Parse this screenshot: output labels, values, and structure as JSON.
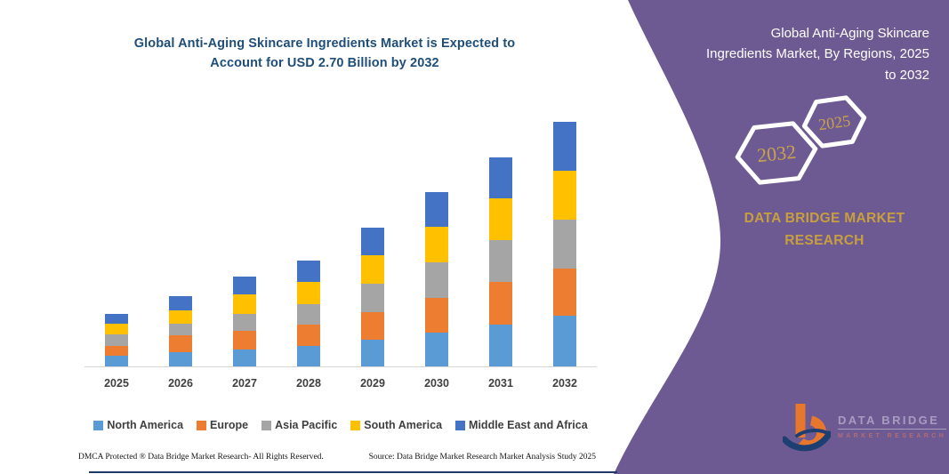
{
  "chart": {
    "axis_color": "#d6d6d6",
    "title_color": "#1f4e79"
  },
  "chart_data": {
    "type": "bar",
    "stacked": true,
    "title": "Global Anti-Aging Skincare Ingredients Market is Expected to Account for USD 2.70 Billion by 2032",
    "unit": "USD Billion",
    "categories": [
      "2025",
      "2026",
      "2027",
      "2028",
      "2029",
      "2030",
      "2031",
      "2032"
    ],
    "series": [
      {
        "name": "North America",
        "color": "#5B9BD5",
        "values": [
          0.12,
          0.16,
          0.19,
          0.23,
          0.29,
          0.37,
          0.46,
          0.56
        ]
      },
      {
        "name": "Europe",
        "color": "#ED7D31",
        "values": [
          0.11,
          0.18,
          0.2,
          0.23,
          0.31,
          0.39,
          0.47,
          0.52
        ]
      },
      {
        "name": "Asia Pacific",
        "color": "#A5A5A5",
        "values": [
          0.12,
          0.13,
          0.19,
          0.23,
          0.31,
          0.39,
          0.46,
          0.54
        ]
      },
      {
        "name": "South America",
        "color": "#FFC000",
        "values": [
          0.12,
          0.15,
          0.21,
          0.24,
          0.32,
          0.39,
          0.46,
          0.54
        ]
      },
      {
        "name": "Middle East and Africa",
        "color": "#4472C4",
        "values": [
          0.11,
          0.15,
          0.2,
          0.24,
          0.3,
          0.38,
          0.46,
          0.54
        ]
      }
    ],
    "totals": [
      0.58,
      0.77,
      0.99,
      1.17,
      1.53,
      1.92,
      2.31,
      2.7
    ],
    "ylim": [
      0,
      2.8
    ],
    "grid": false,
    "legend_position": "bottom"
  },
  "footer": {
    "left": "DMCA Protected ® Data Bridge Market Research-  All Rights Reserved.",
    "right": "Source: Data Bridge Market Research  Market Analysis Study 2025"
  },
  "right_panel": {
    "panel_color": "#6d5a93",
    "accent_gold": "#c79f3f",
    "heading": "Global Anti-Aging Skincare Ingredients Market, By Regions, 2025 to 2032",
    "hexagon_back_label": "2032",
    "hexagon_front_label": "2025",
    "brand_text": "DATA BRIDGE MARKET RESEARCH",
    "logo": {
      "line1": "DATA BRIDGE",
      "line2": "MARKET RESEARCH"
    }
  }
}
